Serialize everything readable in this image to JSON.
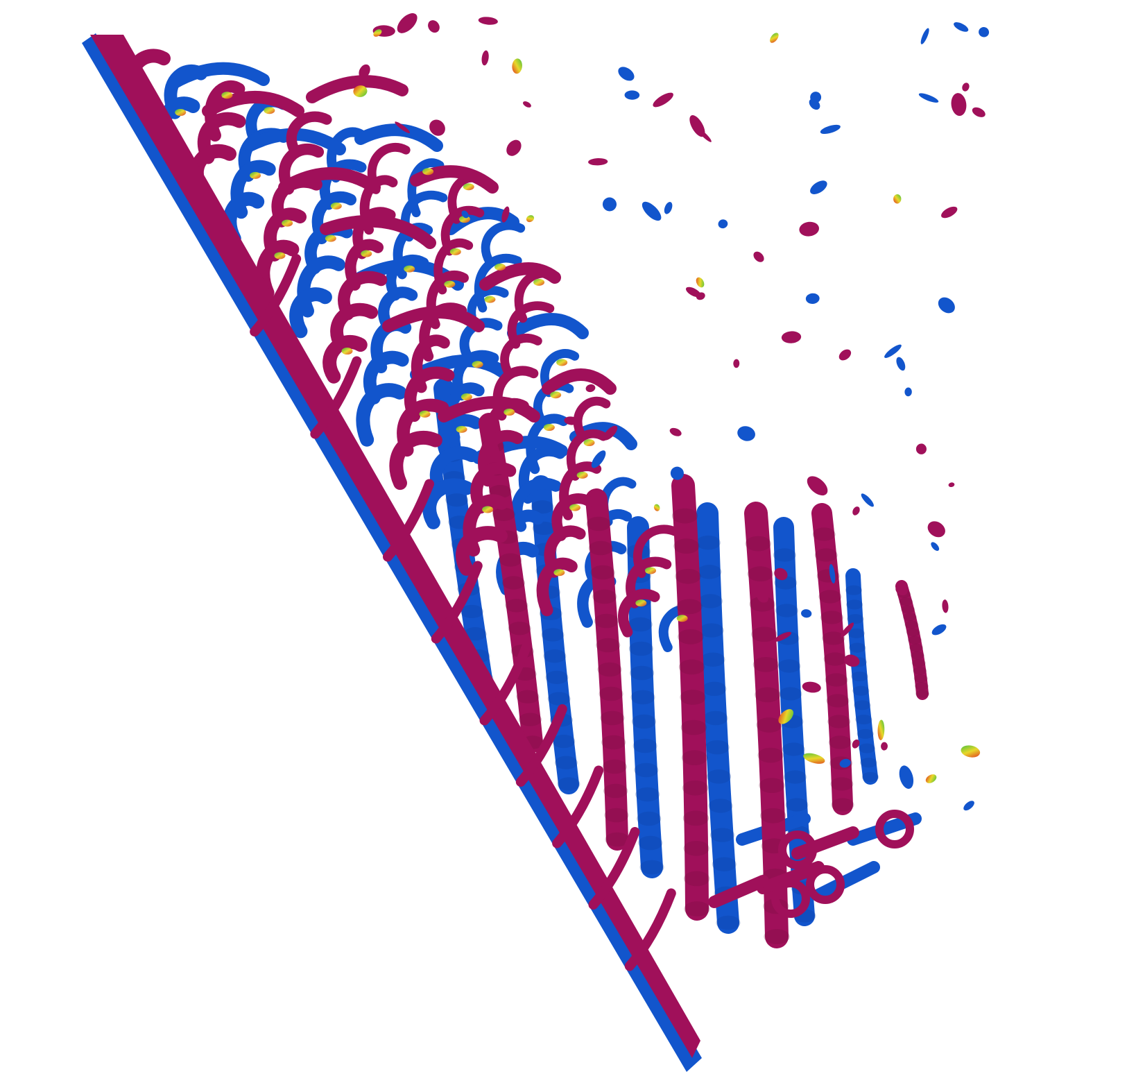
{
  "scene": {
    "background": "#ffffff",
    "colors": {
      "positive_vortex": "#a0105a",
      "negative_vortex": "#1255cc",
      "shade_dark": "#6e0a3c",
      "shade_blue_dark": "#0b3a99",
      "highlight_green": "#3fbf3f",
      "highlight_yellow": "#e8d82a",
      "highlight_red": "#e03020",
      "highlight_cyan": "#22b8c8"
    },
    "icons": [
      "trailing-edge-plate",
      "vortex-tube",
      "vortex-ring-fragment"
    ]
  }
}
